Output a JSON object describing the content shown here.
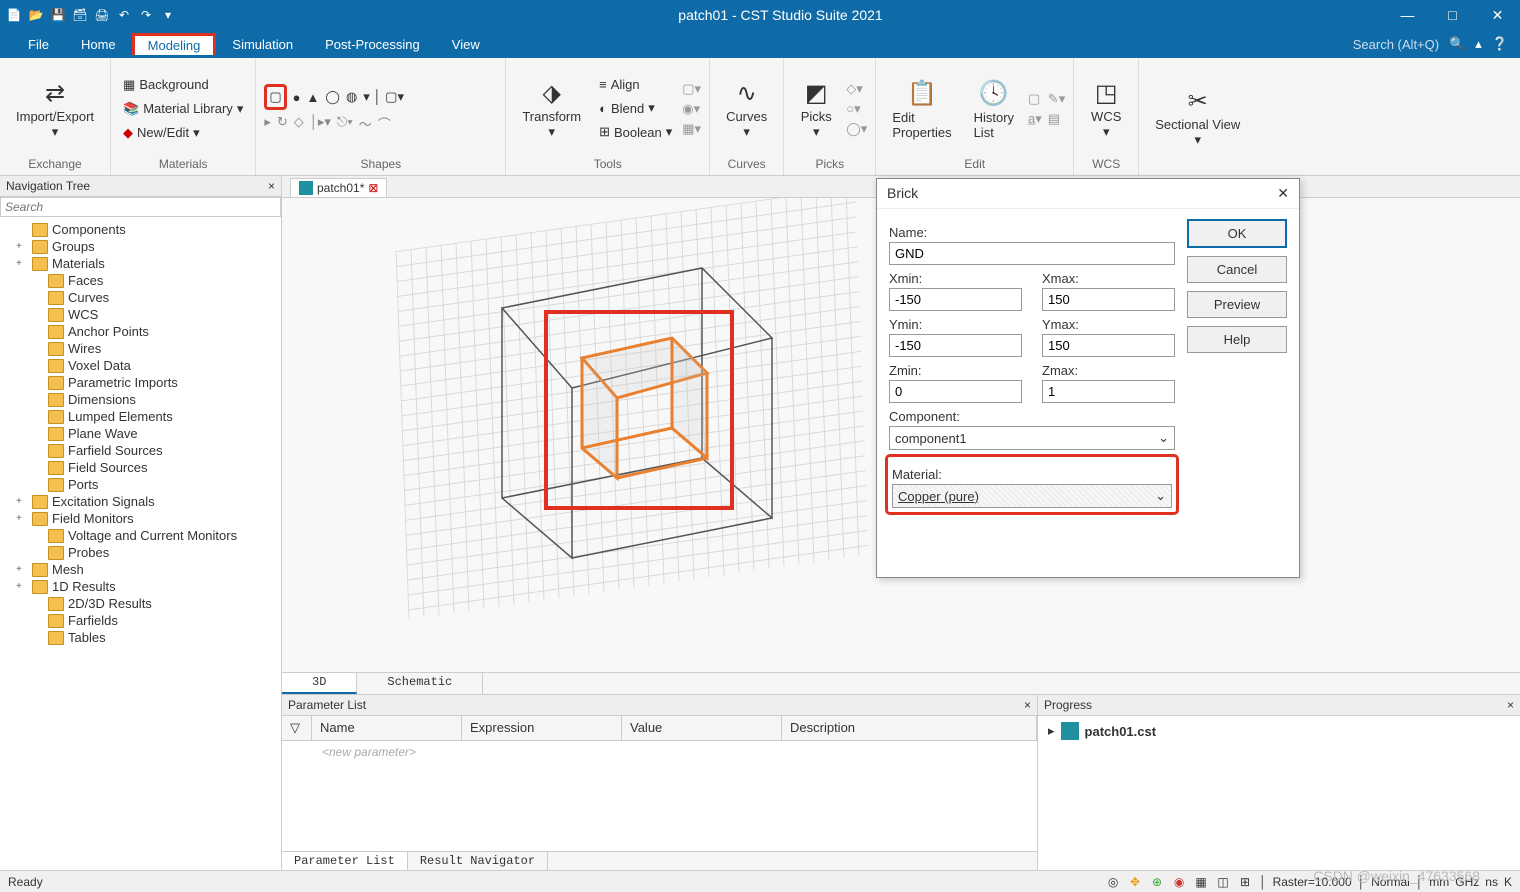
{
  "app": {
    "title": "patch01 - CST Studio Suite 2021"
  },
  "qat_icons": [
    "new-file",
    "open-file",
    "save",
    "save-all",
    "print",
    "undo",
    "redo"
  ],
  "menu": {
    "items": [
      "File",
      "Home",
      "Modeling",
      "Simulation",
      "Post-Processing",
      "View"
    ],
    "active": "Modeling",
    "search_placeholder": "Search (Alt+Q)"
  },
  "ribbon": {
    "exchange": {
      "label": "Exchange",
      "import_export": "Import/Export"
    },
    "materials": {
      "label": "Materials",
      "background": "Background",
      "library": "Material Library",
      "new_edit": "New/Edit"
    },
    "shapes": {
      "label": "Shapes"
    },
    "tools": {
      "label": "Tools",
      "transform": "Transform",
      "align": "Align",
      "blend": "Blend",
      "boolean": "Boolean"
    },
    "curves": {
      "label": "Curves",
      "btn": "Curves"
    },
    "picks": {
      "label": "Picks",
      "btn": "Picks"
    },
    "edit": {
      "label": "Edit",
      "props": "Edit\nProperties",
      "history": "History\nList"
    },
    "wcs": {
      "label": "WCS",
      "btn": "WCS"
    },
    "sectional": {
      "label": "",
      "btn": "Sectional View"
    }
  },
  "nav": {
    "title": "Navigation Tree",
    "search_placeholder": "Search",
    "items": [
      {
        "label": "Components",
        "indent": false
      },
      {
        "label": "Groups",
        "indent": false,
        "exp": "+"
      },
      {
        "label": "Materials",
        "indent": false,
        "exp": "+"
      },
      {
        "label": "Faces",
        "indent": true
      },
      {
        "label": "Curves",
        "indent": true
      },
      {
        "label": "WCS",
        "indent": true
      },
      {
        "label": "Anchor Points",
        "indent": true
      },
      {
        "label": "Wires",
        "indent": true
      },
      {
        "label": "Voxel Data",
        "indent": true
      },
      {
        "label": "Parametric Imports",
        "indent": true
      },
      {
        "label": "Dimensions",
        "indent": true
      },
      {
        "label": "Lumped Elements",
        "indent": true
      },
      {
        "label": "Plane Wave",
        "indent": true
      },
      {
        "label": "Farfield Sources",
        "indent": true
      },
      {
        "label": "Field Sources",
        "indent": true
      },
      {
        "label": "Ports",
        "indent": true
      },
      {
        "label": "Excitation Signals",
        "indent": false,
        "exp": "+"
      },
      {
        "label": "Field Monitors",
        "indent": false,
        "exp": "+"
      },
      {
        "label": "Voltage and Current Monitors",
        "indent": true
      },
      {
        "label": "Probes",
        "indent": true
      },
      {
        "label": "Mesh",
        "indent": false,
        "exp": "+"
      },
      {
        "label": "1D Results",
        "indent": false,
        "exp": "+"
      },
      {
        "label": "2D/3D Results",
        "indent": true
      },
      {
        "label": "Farfields",
        "indent": true
      },
      {
        "label": "Tables",
        "indent": true
      }
    ]
  },
  "doc_tab": {
    "label": "patch01*"
  },
  "view_tabs": {
    "tab3d": "3D",
    "schematic": "Schematic"
  },
  "param": {
    "title": "Parameter List",
    "headers": [
      "Name",
      "Expression",
      "Value",
      "Description"
    ],
    "new_label": "<new parameter>",
    "tabs": {
      "list": "Parameter List",
      "nav": "Result Navigator"
    }
  },
  "progress": {
    "title": "Progress",
    "item": "patch01.cst"
  },
  "dialog": {
    "title": "Brick",
    "buttons": {
      "ok": "OK",
      "cancel": "Cancel",
      "preview": "Preview",
      "help": "Help"
    },
    "name_label": "Name:",
    "name_val": "GND",
    "xmin_label": "Xmin:",
    "xmin_val": "-150",
    "xmax_label": "Xmax:",
    "xmax_val": "150",
    "ymin_label": "Ymin:",
    "ymin_val": "-150",
    "ymax_label": "Ymax:",
    "ymax_val": "150",
    "zmin_label": "Zmin:",
    "zmin_val": "0",
    "zmax_label": "Zmax:",
    "zmax_val": "1",
    "component_label": "Component:",
    "component_val": "component1",
    "material_label": "Material:",
    "material_val": "Copper (pure)"
  },
  "status": {
    "ready": "Ready",
    "raster": "Raster=10.000",
    "normal": "Normal",
    "unit1": "mm",
    "unit2": "GHz",
    "unit3": "ns",
    "unit4": "K"
  },
  "watermark": "CSDN @weixin_47633568",
  "colors": {
    "titlebar": "#0f6ba8",
    "highlight": "#e03020",
    "cube_inner": "#e88030"
  }
}
